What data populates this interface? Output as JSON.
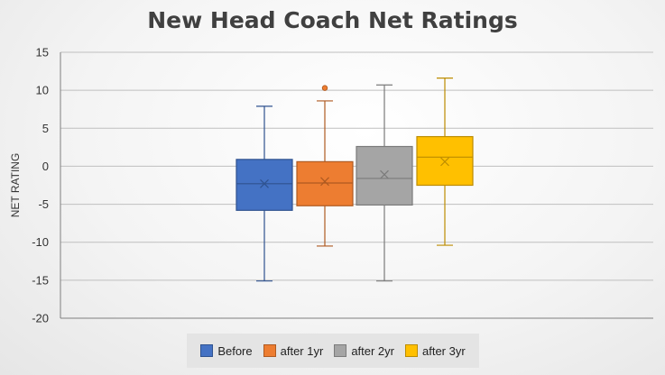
{
  "chart_data": {
    "type": "box",
    "title": "New Head Coach Net Ratings",
    "xlabel": "",
    "ylabel": "NET RATING",
    "ylim": [
      -20,
      15
    ],
    "yticks": [
      15,
      10,
      5,
      0,
      -5,
      -10,
      -15,
      -20
    ],
    "grid": true,
    "legend_position": "bottom",
    "series": [
      {
        "name": "Before",
        "color": "#4472C4",
        "stroke": "#2F528F",
        "min": -15.1,
        "q1": -5.8,
        "median": -2.3,
        "mean": -2.3,
        "q3": 0.9,
        "max": 7.9,
        "outliers": []
      },
      {
        "name": "after 1yr",
        "color": "#ED7D31",
        "stroke": "#AE5A21",
        "min": -10.5,
        "q1": -5.2,
        "median": -2.2,
        "mean": -2.0,
        "q3": 0.6,
        "max": 8.6,
        "outliers": [
          10.3
        ]
      },
      {
        "name": "after 2yr",
        "color": "#A5A5A5",
        "stroke": "#7B7B7B",
        "min": -15.1,
        "q1": -5.1,
        "median": -1.6,
        "mean": -1.1,
        "q3": 2.6,
        "max": 10.7,
        "outliers": []
      },
      {
        "name": "after 3yr",
        "color": "#FFC000",
        "stroke": "#BC8C00",
        "min": -10.4,
        "q1": -2.5,
        "median": 1.2,
        "mean": 0.6,
        "q3": 3.9,
        "max": 11.6,
        "outliers": []
      }
    ]
  }
}
